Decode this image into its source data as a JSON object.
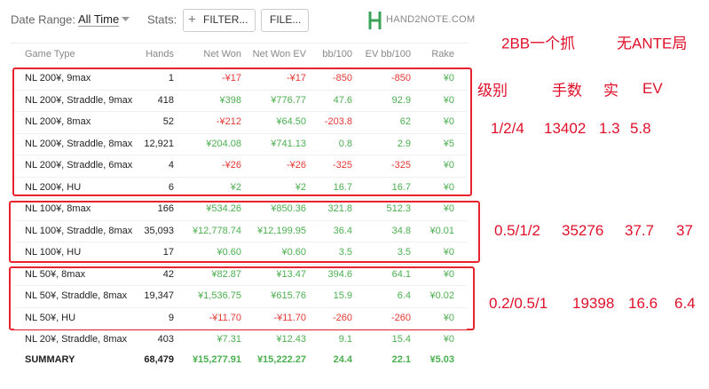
{
  "toolbar": {
    "date_range_label": "Date Range:",
    "date_range_value": "All Time",
    "stats_label": "Stats:",
    "filter_button": "FILTER...",
    "file_button": "FILE...",
    "logo": "HAND2NOTE.COM"
  },
  "table": {
    "columns": [
      "Game Type",
      "Hands",
      "Net Won",
      "Net Won  EV",
      "bb/100",
      "EV bb/100",
      "Rake"
    ],
    "rows": [
      [
        "NL 200¥, 9max",
        "1",
        "-¥17",
        "-¥17",
        "-850",
        "-850",
        "¥0"
      ],
      [
        "NL 200¥, Straddle, 9max",
        "418",
        "¥398",
        "¥776.77",
        "47.6",
        "92.9",
        "¥0"
      ],
      [
        "NL 200¥, 8max",
        "52",
        "-¥212",
        "¥64.50",
        "-203.8",
        "62",
        "¥0"
      ],
      [
        "NL 200¥, Straddle, 8max",
        "12,921",
        "¥204.08",
        "¥741.13",
        "0.8",
        "2.9",
        "¥5"
      ],
      [
        "NL 200¥, Straddle, 6max",
        "4",
        "-¥26",
        "-¥26",
        "-325",
        "-325",
        "¥0"
      ],
      [
        "NL 200¥, HU",
        "6",
        "¥2",
        "¥2",
        "16.7",
        "16.7",
        "¥0"
      ],
      [
        "NL 100¥, 8max",
        "166",
        "¥534.26",
        "¥850.36",
        "321.8",
        "512.3",
        "¥0"
      ],
      [
        "NL 100¥, Straddle, 8max",
        "35,093",
        "¥12,778.74",
        "¥12,199.95",
        "36.4",
        "34.8",
        "¥0.01"
      ],
      [
        "NL 100¥, HU",
        "17",
        "¥0.60",
        "¥0.60",
        "3.5",
        "3.5",
        "¥0"
      ],
      [
        "NL 50¥, 8max",
        "42",
        "¥82.87",
        "¥13.47",
        "394.6",
        "64.1",
        "¥0"
      ],
      [
        "NL 50¥, Straddle, 8max",
        "19,347",
        "¥1,536.75",
        "¥615.76",
        "15.9",
        "6.4",
        "¥0.02"
      ],
      [
        "NL 50¥, HU",
        "9",
        "-¥11.70",
        "-¥11.70",
        "-260",
        "-260",
        "¥0"
      ],
      [
        "NL 20¥, Straddle, 8max",
        "403",
        "¥7.31",
        "¥12.43",
        "9.1",
        "15.4",
        "¥0"
      ]
    ],
    "summary": [
      "SUMMARY",
      "68,479",
      "¥15,277.91",
      "¥15,222.27",
      "24.4",
      "22.1",
      "¥5.03"
    ]
  },
  "annotations": {
    "top": [
      "2BB一个抓",
      "无ANTE局"
    ],
    "headers": [
      "级别",
      "手数",
      "实",
      "EV"
    ],
    "groups": [
      [
        "1/2/4",
        "13402",
        "1.3",
        "5.8"
      ],
      [
        "0.5/1/2",
        "35276",
        "37.7",
        "37"
      ],
      [
        "0.2/0.5/1",
        "19398",
        "16.6",
        "6.4"
      ]
    ]
  }
}
